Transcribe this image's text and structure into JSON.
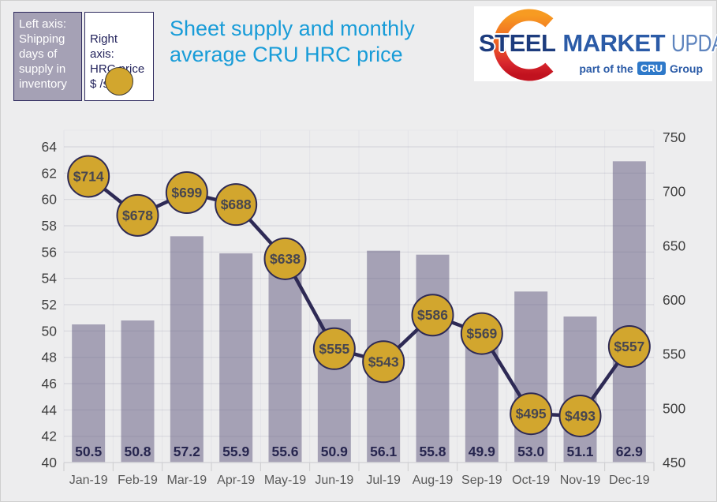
{
  "header": {
    "legend_left": {
      "text": "Left axis:\nShipping\ndays of\nsupply in\ninventory"
    },
    "legend_right": {
      "text": "Right\naxis:\nHRC price\n$ /s.ton"
    },
    "title": {
      "line1": "Sheet supply and monthly",
      "line2": "average CRU HRC price"
    },
    "logo": {
      "word1": "STEEL",
      "word2": "MARKET",
      "word3": "UPDATE",
      "tagline_prefix": "part of the",
      "tagline_badge": "CRU",
      "tagline_suffix": "Group"
    }
  },
  "chart_data": {
    "type": "bar",
    "title": "Sheet supply and monthly average CRU HRC price",
    "categories": [
      "Jan-19",
      "Feb-19",
      "Mar-19",
      "Apr-19",
      "May-19",
      "Jun-19",
      "Jul-19",
      "Aug-19",
      "Sep-19",
      "Oct-19",
      "Nov-19",
      "Dec-19"
    ],
    "series": [
      {
        "name": "Shipping days of supply in inventory",
        "type": "bar",
        "axis": "left",
        "values": [
          50.5,
          50.8,
          57.2,
          55.9,
          55.6,
          50.9,
          56.1,
          55.8,
          49.9,
          53.0,
          51.1,
          62.9
        ]
      },
      {
        "name": "HRC price $ /s.ton",
        "type": "line",
        "axis": "right",
        "label_prefix": "$",
        "values": [
          714,
          678,
          699,
          688,
          638,
          555,
          543,
          586,
          569,
          495,
          493,
          557
        ]
      }
    ],
    "left_axis": {
      "min": 40,
      "max": 64,
      "step": 2,
      "label": "Shipping days of supply in inventory"
    },
    "right_axis": {
      "min": 450,
      "max": 750,
      "step": 50,
      "label": "HRC price $ /s.ton"
    },
    "grid": true,
    "legend_position": "top-left",
    "colors": {
      "bar": "#a5a1b5",
      "marker_fill": "#d2a62e",
      "marker_stroke": "#2e2a55",
      "line": "#2e2a55",
      "bar_label": "#26254e",
      "marker_label": "#474650",
      "title": "#189cd8",
      "background": "#ededee"
    }
  }
}
